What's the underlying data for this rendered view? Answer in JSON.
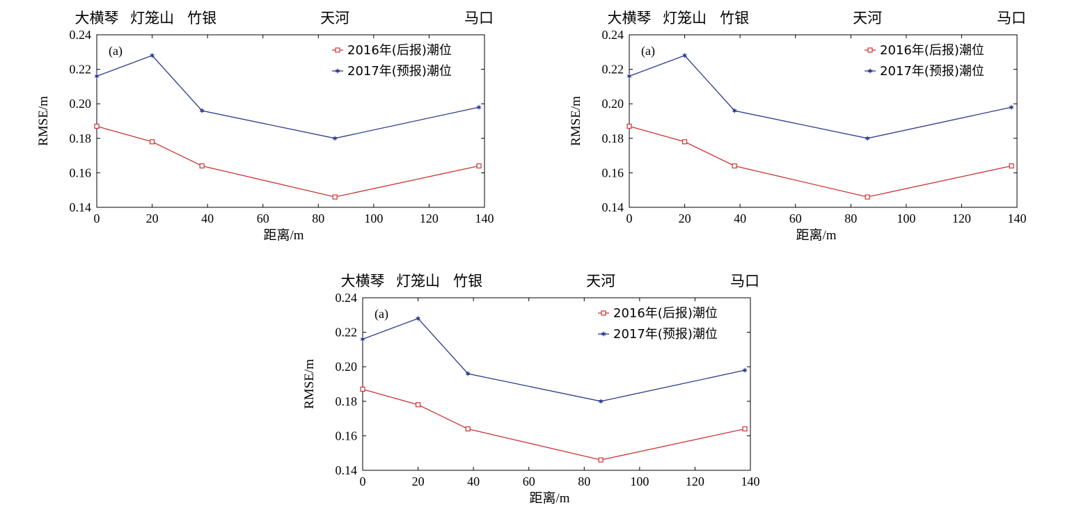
{
  "chart_data": [
    {
      "type": "line",
      "panel_label": "(a)",
      "xlabel": "距离/m",
      "ylabel": "RMSE/m",
      "xlim": [
        0,
        140
      ],
      "ylim": [
        0.14,
        0.24
      ],
      "xticks": [
        "0",
        "20",
        "40",
        "60",
        "80",
        "100",
        "120",
        "140"
      ],
      "yticks": [
        "0.14",
        "0.16",
        "0.18",
        "0.20",
        "0.22",
        "0.24"
      ],
      "x": [
        0,
        20,
        38,
        86,
        138
      ],
      "stations": [
        {
          "name": "大横琴",
          "x": 0
        },
        {
          "name": "灯笼山",
          "x": 20
        },
        {
          "name": "竹银",
          "x": 38
        },
        {
          "name": "天河",
          "x": 86
        },
        {
          "name": "马口",
          "x": 138
        }
      ],
      "series": [
        {
          "name": "2016年(后报)潮位",
          "marker": "square",
          "color": "#cc3333",
          "values": [
            0.187,
            0.178,
            0.164,
            0.146,
            0.164
          ]
        },
        {
          "name": "2017年(预报)潮位",
          "marker": "star",
          "color": "#2b3a8f",
          "values": [
            0.216,
            0.228,
            0.196,
            0.18,
            0.198
          ]
        }
      ],
      "legend_position": "top-right",
      "grid": false
    },
    {
      "type": "line",
      "panel_label": "(a)",
      "xlabel": "距离/m",
      "ylabel": "RMSE/m",
      "xlim": [
        0,
        140
      ],
      "ylim": [
        0.14,
        0.24
      ],
      "xticks": [
        "0",
        "20",
        "40",
        "60",
        "80",
        "100",
        "120",
        "140"
      ],
      "yticks": [
        "0.14",
        "0.16",
        "0.18",
        "0.20",
        "0.22",
        "0.24"
      ],
      "x": [
        0,
        20,
        38,
        86,
        138
      ],
      "stations": [
        {
          "name": "大横琴",
          "x": 0
        },
        {
          "name": "灯笼山",
          "x": 20
        },
        {
          "name": "竹银",
          "x": 38
        },
        {
          "name": "天河",
          "x": 86
        },
        {
          "name": "马口",
          "x": 138
        }
      ],
      "series": [
        {
          "name": "2016年(后报)潮位",
          "marker": "square",
          "color": "#cc3333",
          "values": [
            0.187,
            0.178,
            0.164,
            0.146,
            0.164
          ]
        },
        {
          "name": "2017年(预报)潮位",
          "marker": "star",
          "color": "#2b3a8f",
          "values": [
            0.216,
            0.228,
            0.196,
            0.18,
            0.198
          ]
        }
      ],
      "legend_position": "top-right",
      "grid": false
    },
    {
      "type": "line",
      "panel_label": "(a)",
      "xlabel": "距离/m",
      "ylabel": "RMSE/m",
      "xlim": [
        0,
        140
      ],
      "ylim": [
        0.14,
        0.24
      ],
      "xticks": [
        "0",
        "20",
        "40",
        "60",
        "80",
        "100",
        "120",
        "140"
      ],
      "yticks": [
        "0.14",
        "0.16",
        "0.18",
        "0.20",
        "0.22",
        "0.24"
      ],
      "x": [
        0,
        20,
        38,
        86,
        138
      ],
      "stations": [
        {
          "name": "大横琴",
          "x": 0
        },
        {
          "name": "灯笼山",
          "x": 20
        },
        {
          "name": "竹银",
          "x": 38
        },
        {
          "name": "天河",
          "x": 86
        },
        {
          "name": "马口",
          "x": 138
        }
      ],
      "series": [
        {
          "name": "2016年(后报)潮位",
          "marker": "square",
          "color": "#cc3333",
          "values": [
            0.187,
            0.178,
            0.164,
            0.146,
            0.164
          ]
        },
        {
          "name": "2017年(预报)潮位",
          "marker": "star",
          "color": "#2b3a8f",
          "values": [
            0.216,
            0.228,
            0.196,
            0.18,
            0.198
          ]
        }
      ],
      "legend_position": "top-right",
      "grid": false
    }
  ]
}
